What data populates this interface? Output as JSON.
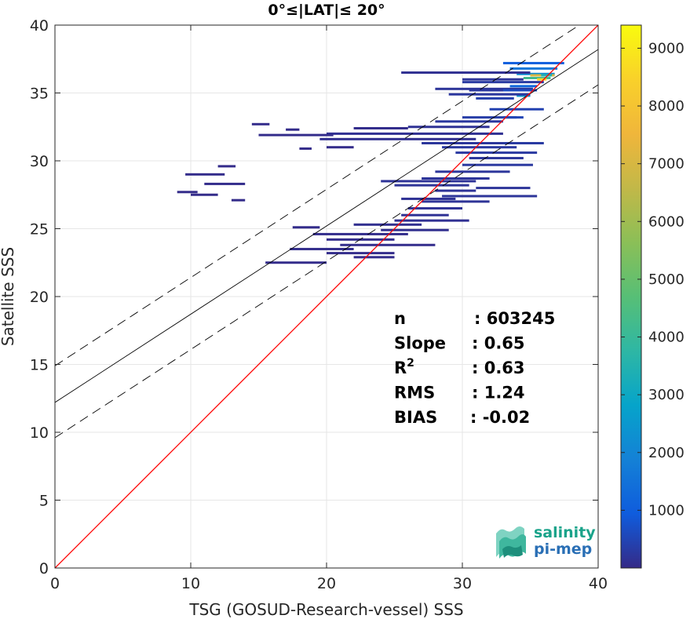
{
  "chart_data": {
    "type": "heatmap",
    "title": "0°≤|LAT|≤ 20°",
    "xlabel": "TSG (GOSUD-Research-vessel) SSS",
    "ylabel": "Satellite SSS",
    "xlim": [
      0,
      40
    ],
    "ylim": [
      0,
      40
    ],
    "xticks": [
      "0",
      "10",
      "20",
      "30",
      "40"
    ],
    "yticks": [
      "0",
      "5",
      "10",
      "15",
      "20",
      "25",
      "30",
      "35",
      "40"
    ],
    "grid": true,
    "colorbar": {
      "range": [
        0,
        9400
      ],
      "ticks": [
        "1000",
        "2000",
        "3000",
        "4000",
        "5000",
        "6000",
        "7000",
        "8000",
        "9000"
      ],
      "colormap": "parula"
    },
    "lines": {
      "one_to_one": {
        "slope": 1,
        "intercept": 0,
        "color": "#ff0000"
      },
      "fit": {
        "slope": 0.65,
        "intercept": 12.2,
        "color": "#000000"
      },
      "fit_upper": {
        "slope": 0.65,
        "intercept": 14.9,
        "dash": true
      },
      "fit_lower": {
        "slope": 0.65,
        "intercept": 9.6,
        "dash": true
      }
    },
    "stats": [
      {
        "label": "n",
        "value": ": 603245"
      },
      {
        "label": "Slope",
        "value": ": 0.65"
      },
      {
        "label": "R",
        "sup": "2",
        "value": ": 0.63"
      },
      {
        "label": "RMS",
        "value": ": 1.24"
      },
      {
        "label": "BIAS",
        "value": ": -0.02"
      }
    ],
    "density_segments": [
      [
        33,
        37.5,
        37.2,
        1000
      ],
      [
        33.5,
        37,
        36.8,
        1600
      ],
      [
        34,
        36.8,
        36.4,
        2200
      ],
      [
        34.5,
        36.5,
        36.1,
        4200
      ],
      [
        35,
        36.8,
        36.3,
        7000
      ],
      [
        35.5,
        36.2,
        36,
        8500
      ],
      [
        35.8,
        36.6,
        36.3,
        3500
      ],
      [
        33.5,
        35.5,
        35.5,
        1200
      ],
      [
        34,
        35,
        34.8,
        2500
      ],
      [
        31,
        33.8,
        34.6,
        400
      ],
      [
        25.5,
        35,
        36.5,
        120
      ],
      [
        30,
        36,
        35.8,
        300
      ],
      [
        28,
        35.2,
        35.3,
        200
      ],
      [
        29,
        35,
        34.9,
        250
      ],
      [
        32,
        35.5,
        35.2,
        600
      ],
      [
        30,
        34,
        33.2,
        350
      ],
      [
        28,
        33,
        32.9,
        250
      ],
      [
        26,
        32,
        32.5,
        150
      ],
      [
        22,
        26,
        32.4,
        60
      ],
      [
        20,
        33,
        32.0,
        120
      ],
      [
        14.5,
        15.8,
        32.7,
        40
      ],
      [
        17,
        18,
        32.3,
        40
      ],
      [
        15,
        20.5,
        31.9,
        45
      ],
      [
        19.5,
        31,
        31.6,
        90
      ],
      [
        27,
        33.5,
        31.3,
        220
      ],
      [
        28.5,
        34,
        31.0,
        260
      ],
      [
        29.5,
        35.5,
        30.6,
        280
      ],
      [
        30.5,
        34.5,
        30.2,
        220
      ],
      [
        18,
        18.9,
        30.9,
        30
      ],
      [
        20,
        22,
        31.0,
        30
      ],
      [
        30,
        35.2,
        29.7,
        260
      ],
      [
        28,
        33.5,
        29.2,
        220
      ],
      [
        27,
        32,
        28.7,
        200
      ],
      [
        25,
        30.5,
        28.2,
        180
      ],
      [
        28,
        31,
        27.8,
        170
      ],
      [
        28.5,
        35.5,
        27.4,
        200
      ],
      [
        27,
        32,
        27.0,
        180
      ],
      [
        26,
        30,
        26.5,
        160
      ],
      [
        25.5,
        29,
        26.0,
        140
      ],
      [
        25,
        30.5,
        25.6,
        120
      ],
      [
        22,
        27,
        25.3,
        90
      ],
      [
        24,
        29,
        24.9,
        90
      ],
      [
        17.5,
        19.5,
        25.1,
        40
      ],
      [
        19,
        26,
        24.6,
        60
      ],
      [
        20,
        25,
        24.2,
        50
      ],
      [
        21,
        28,
        23.8,
        60
      ],
      [
        17.3,
        22,
        23.5,
        50
      ],
      [
        20,
        25,
        23.2,
        40
      ],
      [
        15.5,
        20,
        22.5,
        40
      ],
      [
        22,
        25,
        22.9,
        40
      ],
      [
        9.6,
        12.5,
        29.0,
        40
      ],
      [
        11,
        14,
        28.3,
        40
      ],
      [
        9,
        10.5,
        27.7,
        35
      ],
      [
        10,
        12,
        27.5,
        35
      ],
      [
        13,
        14,
        27.1,
        30
      ],
      [
        12,
        13.3,
        29.6,
        30
      ],
      [
        24,
        31,
        28.5,
        170
      ],
      [
        25.5,
        29.5,
        27.2,
        150
      ],
      [
        31,
        35,
        28.0,
        200
      ],
      [
        33,
        36,
        31.3,
        300
      ],
      [
        32,
        36,
        33.8,
        450
      ],
      [
        30.5,
        33,
        35.2,
        250
      ],
      [
        30,
        34.5,
        36.0,
        200
      ],
      [
        33,
        34.5,
        33.2,
        500
      ]
    ]
  }
}
